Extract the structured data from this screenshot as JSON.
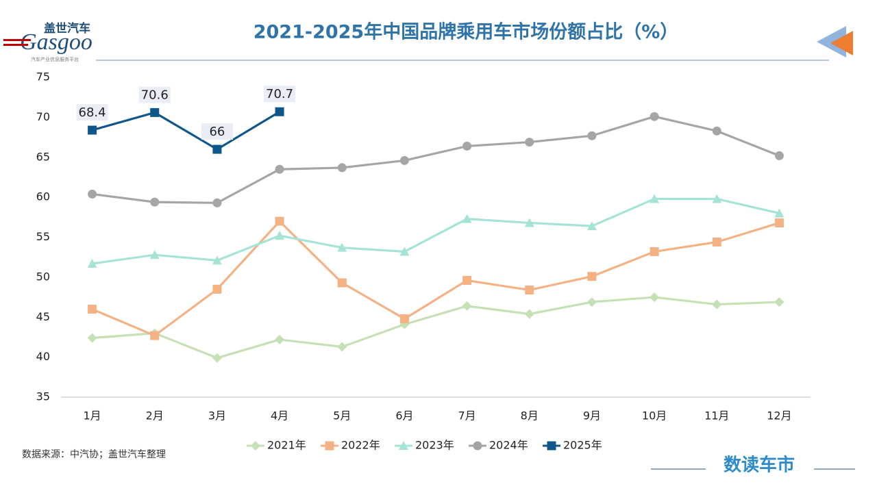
{
  "logo": {
    "cn": "盖世汽车",
    "en": "Gasgoo",
    "tagline": "汽车产业信息服务平台"
  },
  "chart_data": {
    "type": "line",
    "title": "2021-2025年中国品牌乘用车市场份额占比（%）",
    "categories": [
      "1月",
      "2月",
      "3月",
      "4月",
      "5月",
      "6月",
      "7月",
      "8月",
      "9月",
      "10月",
      "11月",
      "12月"
    ],
    "series": [
      {
        "name": "2021年",
        "color": "#c5e0b4",
        "marker": "diamond",
        "values": [
          42.4,
          43.0,
          39.9,
          42.2,
          41.3,
          44.1,
          46.4,
          45.4,
          46.9,
          47.5,
          46.6,
          46.9
        ]
      },
      {
        "name": "2022年",
        "color": "#f4b183",
        "marker": "square",
        "values": [
          46.0,
          42.7,
          48.5,
          57.0,
          49.3,
          44.8,
          49.6,
          48.4,
          50.1,
          53.2,
          54.4,
          56.8
        ]
      },
      {
        "name": "2023年",
        "color": "#a6e3d7",
        "marker": "triangle",
        "values": [
          51.7,
          52.8,
          52.1,
          55.2,
          53.7,
          53.2,
          57.3,
          56.8,
          56.4,
          59.8,
          59.8,
          58.0
        ]
      },
      {
        "name": "2024年",
        "color": "#a5a5a5",
        "marker": "circle",
        "values": [
          60.4,
          59.4,
          59.3,
          63.5,
          63.7,
          64.6,
          66.4,
          66.9,
          67.7,
          70.1,
          68.3,
          65.2
        ]
      },
      {
        "name": "2025年",
        "color": "#0f568b",
        "marker": "square",
        "data_labels": true,
        "values": [
          68.4,
          70.6,
          66,
          70.7,
          null,
          null,
          null,
          null,
          null,
          null,
          null,
          null
        ]
      }
    ],
    "ylim": [
      35,
      75
    ],
    "yticks": [
      35,
      40,
      45,
      50,
      55,
      60,
      65,
      70,
      75
    ],
    "grid": false,
    "legend": "bottom",
    "source": "数据来源：中汽协；盖世汽车整理",
    "brand": "数读车市"
  }
}
